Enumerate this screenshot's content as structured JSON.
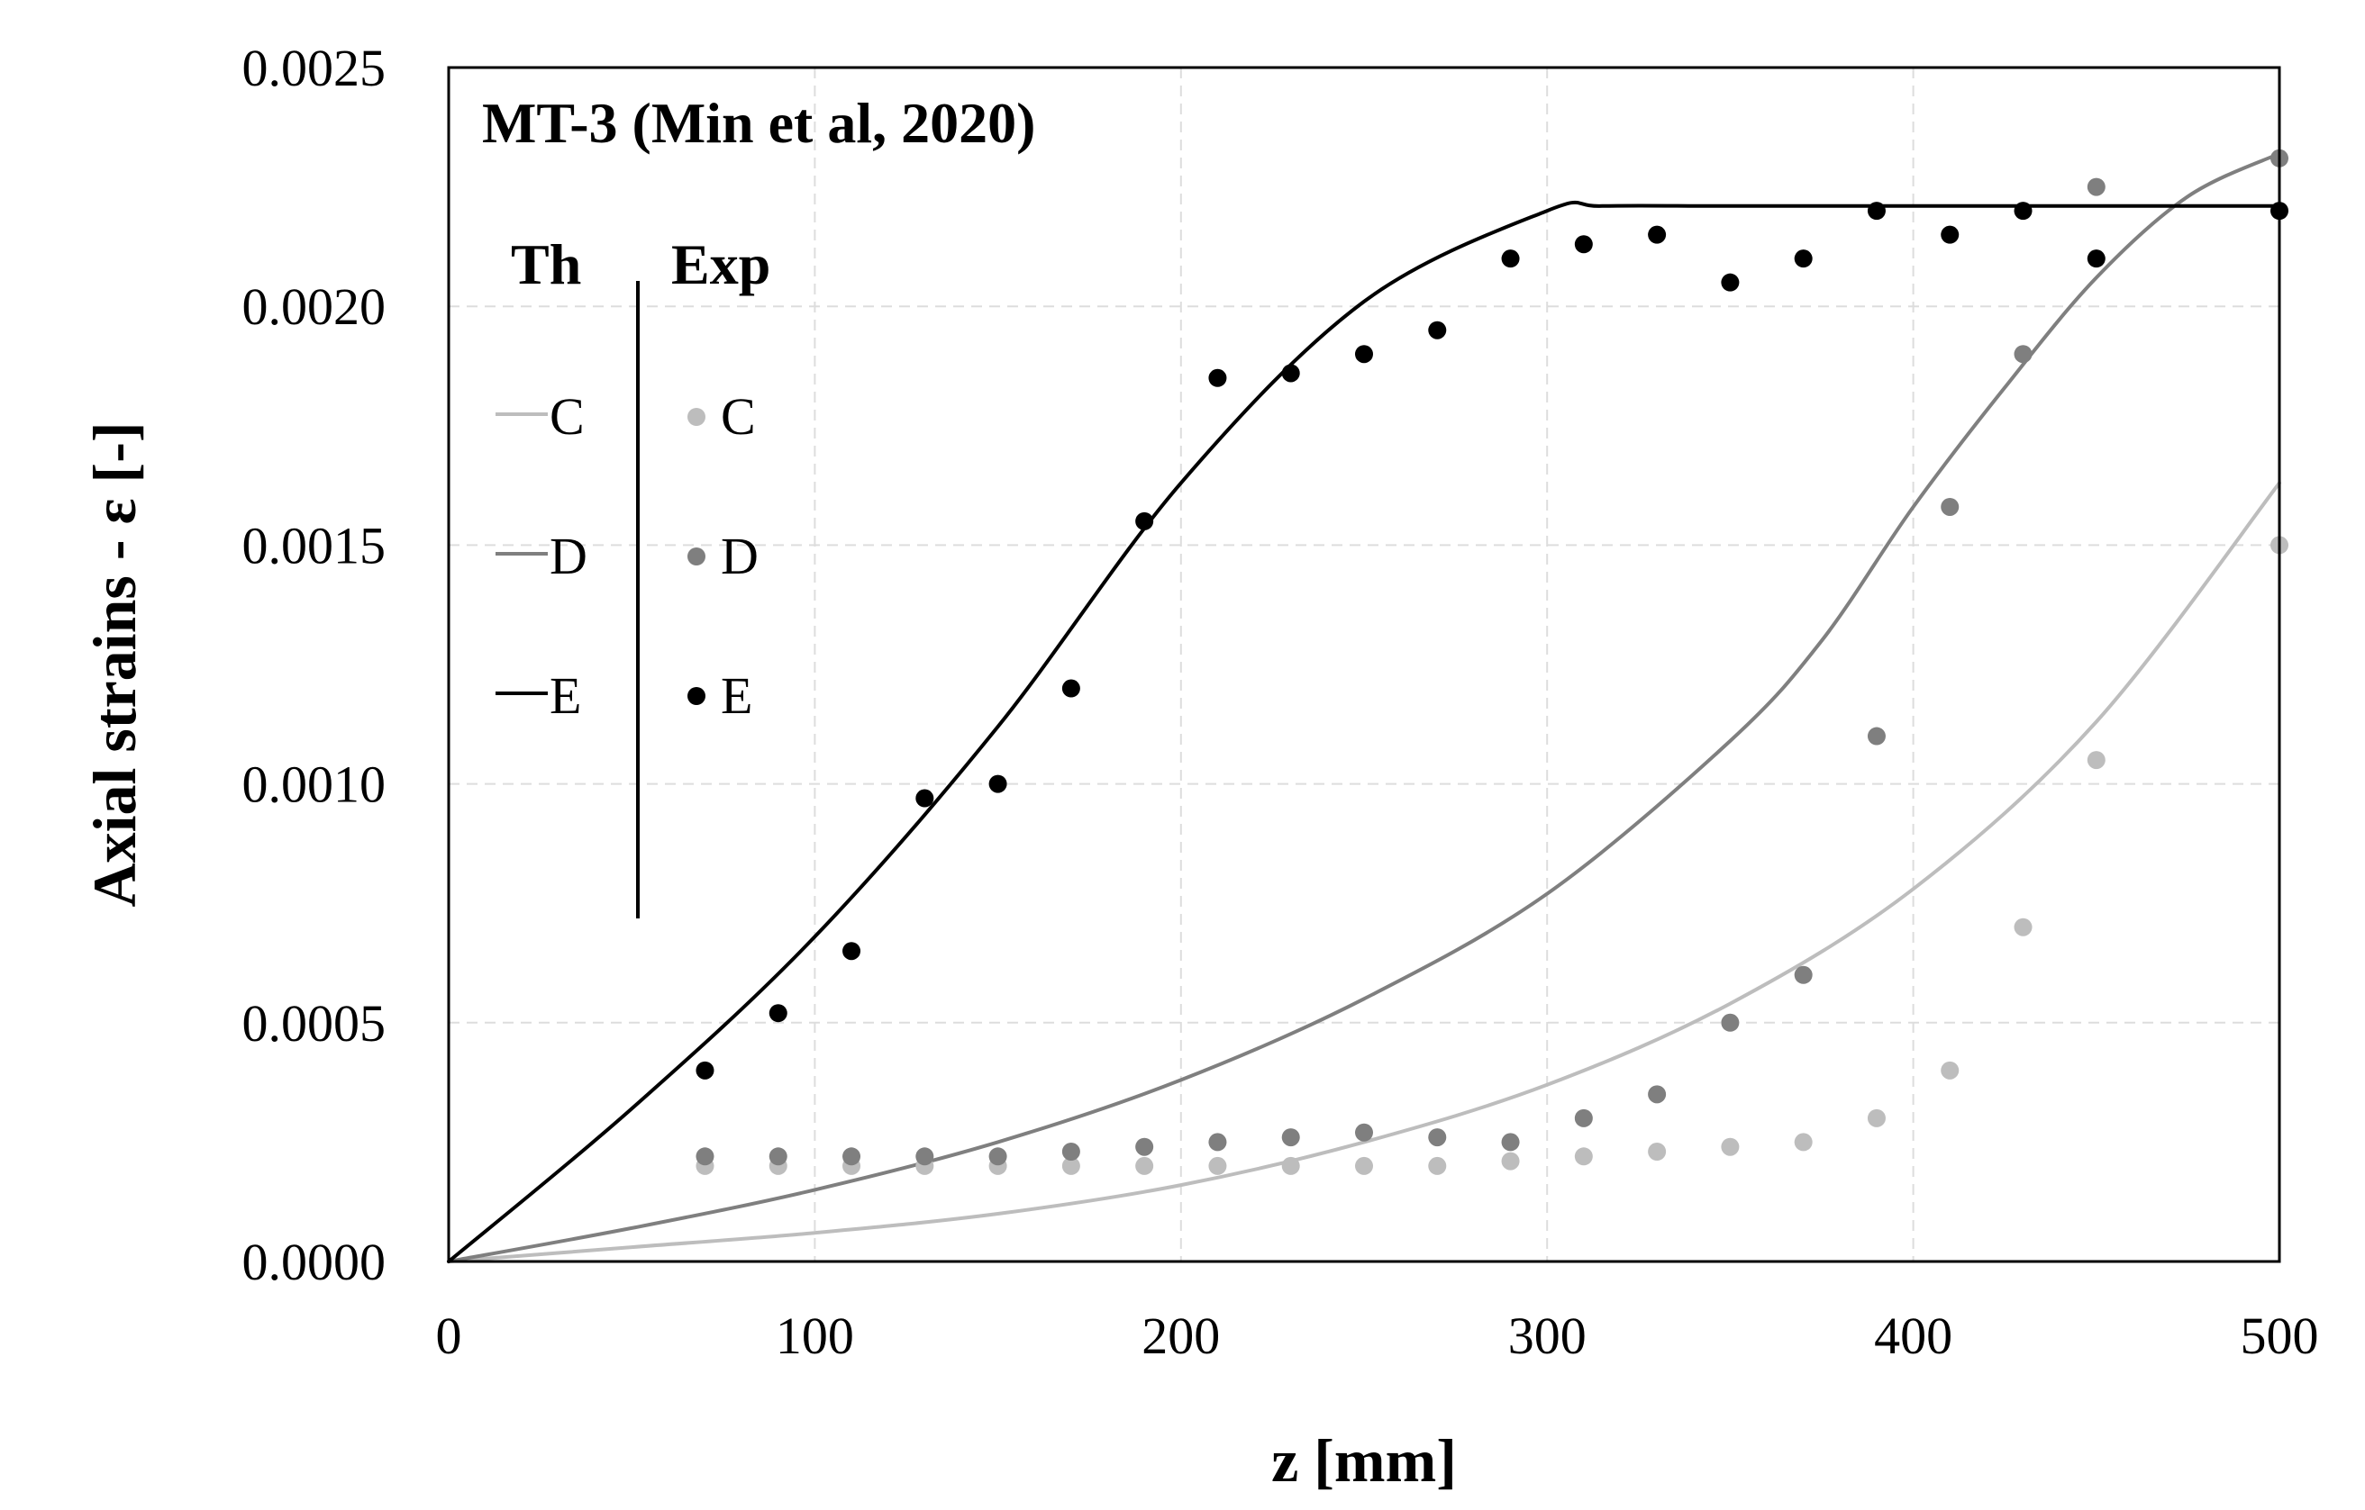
{
  "chart_data": {
    "type": "scatter",
    "title": "MT-3 (Min et al, 2020)",
    "xlabel": "z [mm]",
    "ylabel": "Axial strains - ε [-]",
    "xlim": [
      0,
      500
    ],
    "ylim": [
      0,
      0.0025
    ],
    "xticks": [
      0,
      100,
      200,
      300,
      400,
      500
    ],
    "xtick_labels": [
      "0",
      "100",
      "200",
      "300",
      "400",
      "500"
    ],
    "yticks": [
      0,
      0.0005,
      0.001,
      0.0015,
      0.002,
      0.0025
    ],
    "ytick_labels": [
      "0.0000",
      "0.0005",
      "0.0010",
      "0.0015",
      "0.0020",
      "0.0025"
    ],
    "grid": true,
    "legend": {
      "position": "top-left",
      "theory_header": "Th",
      "experiment_header": "Exp",
      "entries": [
        {
          "key": "C",
          "label": "C"
        },
        {
          "key": "D",
          "label": "D"
        },
        {
          "key": "E",
          "label": "E"
        }
      ]
    },
    "colors": {
      "C": "#bdbdbd",
      "D": "#7f7f7f",
      "E": "#000000"
    },
    "theory": [
      {
        "name": "C",
        "x": [
          0,
          50,
          100,
          150,
          200,
          250,
          300,
          350,
          400,
          450,
          500
        ],
        "y": [
          0,
          3e-05,
          6e-05,
          0.0001,
          0.00016,
          0.00025,
          0.00037,
          0.00054,
          0.00078,
          0.00113,
          0.00163
        ]
      },
      {
        "name": "D",
        "x": [
          0,
          50,
          100,
          150,
          200,
          250,
          300,
          350,
          375,
          400,
          425,
          450,
          475,
          500
        ],
        "y": [
          0,
          7e-05,
          0.00015,
          0.00025,
          0.00038,
          0.00055,
          0.00077,
          0.00109,
          0.0013,
          0.00158,
          0.00183,
          0.00206,
          0.00223,
          0.00232
        ]
      },
      {
        "name": "E",
        "x": [
          0,
          50,
          100,
          150,
          200,
          250,
          300,
          315,
          350,
          400,
          450,
          500
        ],
        "y": [
          0,
          0.00032,
          0.00068,
          0.00112,
          0.00163,
          0.00201,
          0.0022,
          0.00221,
          0.00221,
          0.00221,
          0.00221,
          0.00221
        ]
      }
    ],
    "experiment": [
      {
        "name": "C",
        "x": [
          70,
          90,
          110,
          130,
          150,
          170,
          190,
          210,
          230,
          250,
          270,
          290,
          310,
          330,
          350,
          370,
          390,
          410,
          430,
          450,
          500
        ],
        "y": [
          0.0002,
          0.0002,
          0.0002,
          0.0002,
          0.0002,
          0.0002,
          0.0002,
          0.0002,
          0.0002,
          0.0002,
          0.0002,
          0.00021,
          0.00022,
          0.00023,
          0.00024,
          0.00025,
          0.0003,
          0.0004,
          0.0007,
          0.00105,
          0.0015
        ]
      },
      {
        "name": "D",
        "x": [
          70,
          90,
          110,
          130,
          150,
          170,
          190,
          210,
          230,
          250,
          270,
          290,
          310,
          330,
          350,
          370,
          390,
          410,
          430,
          450,
          500
        ],
        "y": [
          0.00022,
          0.00022,
          0.00022,
          0.00022,
          0.00022,
          0.00023,
          0.00024,
          0.00025,
          0.00026,
          0.00027,
          0.00026,
          0.00025,
          0.0003,
          0.00035,
          0.0005,
          0.0006,
          0.0011,
          0.00158,
          0.0019,
          0.00225,
          0.00231
        ]
      },
      {
        "name": "E",
        "x": [
          70,
          90,
          110,
          130,
          150,
          170,
          190,
          210,
          230,
          250,
          270,
          290,
          310,
          330,
          350,
          370,
          390,
          410,
          430,
          450,
          500
        ],
        "y": [
          0.0004,
          0.00052,
          0.00065,
          0.00097,
          0.001,
          0.0012,
          0.00155,
          0.00185,
          0.00186,
          0.0019,
          0.00195,
          0.0021,
          0.00213,
          0.00215,
          0.00205,
          0.0021,
          0.0022,
          0.00215,
          0.0022,
          0.0021,
          0.0022
        ]
      }
    ]
  }
}
